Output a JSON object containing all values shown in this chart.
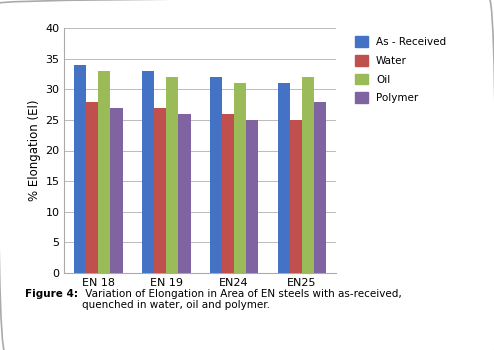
{
  "categories": [
    "EN 18",
    "EN 19",
    "EN24",
    "EN25"
  ],
  "series": {
    "As - Received": [
      34,
      33,
      32,
      31
    ],
    "Water": [
      28,
      27,
      26,
      25
    ],
    "Oil": [
      33,
      32,
      31,
      32
    ],
    "Polymer": [
      27,
      26,
      25,
      28
    ]
  },
  "colors": {
    "As - Received": "#4472C4",
    "Water": "#C0504D",
    "Oil": "#9BBB59",
    "Polymer": "#8064A2"
  },
  "ylabel": "% Elongation (El)",
  "ylim": [
    0,
    40
  ],
  "yticks": [
    0,
    5,
    10,
    15,
    20,
    25,
    30,
    35,
    40
  ],
  "caption_bold": "Figure 4:",
  "caption_normal": " Variation of Elongation in Area of EN steels with as-received,\nquenched in water, oil and polymer.",
  "background_color": "#ffffff",
  "bar_width": 0.18,
  "grid_color": "#b0b0b0"
}
